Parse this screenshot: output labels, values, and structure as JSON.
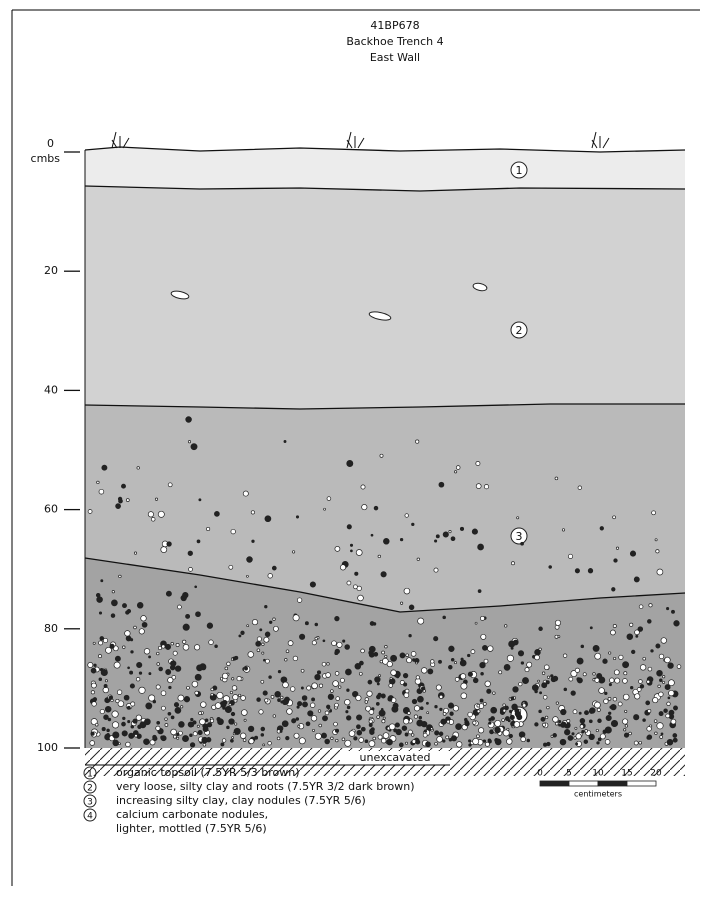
{
  "header": {
    "site": "41BP678",
    "trench": "Backhoe Trench 4",
    "wall": "East Wall"
  },
  "depth_axis": {
    "unit": "cmbs",
    "ticks": [
      "0",
      "20",
      "40",
      "60",
      "80",
      "100"
    ]
  },
  "layers": [
    {
      "label": "1"
    },
    {
      "label": "2"
    },
    {
      "label": "3"
    },
    {
      "label": "4"
    }
  ],
  "unexcavated": "unexcavated",
  "legend": [
    {
      "number": "1",
      "lines": [
        "organic topsoil (7.5YR 5/3 brown)"
      ]
    },
    {
      "number": "2",
      "lines": [
        "very loose, silty clay and roots (7.5YR 3/2 dark brown)"
      ]
    },
    {
      "number": "3",
      "lines": [
        "increasing silty clay, clay nodules (7.5YR 5/6)"
      ]
    },
    {
      "number": "4",
      "lines": [
        "calcium carbonate nodules,",
        "lighter, mottled (7.5YR 5/6)"
      ]
    }
  ],
  "scale": {
    "ticks": [
      "0",
      "5",
      "10",
      "15",
      "20"
    ],
    "unit": "centimeters"
  }
}
